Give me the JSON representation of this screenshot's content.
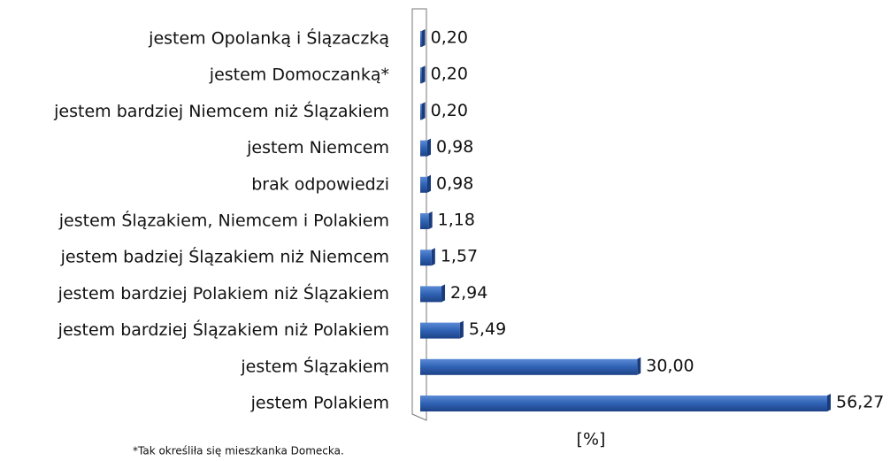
{
  "chart_data": {
    "type": "hbar",
    "categories": [
      "jestem Opolanką i Ślązaczką",
      "jestem Domoczanką*",
      "jestem bardziej Niemcem niż Ślązakiem",
      "jestem Niemcem",
      "brak odpowiedzi",
      "jestem Ślązakiem, Niemcem i Polakiem",
      "jestem badziej Ślązakiem niż Niemcem",
      "jestem bardziej Polakiem niż Ślązakiem",
      "jestem bardziej Ślązakiem niż Polakiem",
      "jestem Ślązakiem",
      "jestem Polakiem"
    ],
    "values": [
      0.2,
      0.2,
      0.2,
      0.98,
      0.98,
      1.18,
      1.57,
      2.94,
      5.49,
      30.0,
      56.27
    ],
    "value_labels": [
      "0,20",
      "0,20",
      "0,20",
      "0,98",
      "0,98",
      "1,18",
      "1,57",
      "2,94",
      "5,49",
      "30,00",
      "56,27"
    ],
    "color": "#2f62b3",
    "xlim": [
      0,
      56.27
    ],
    "xlabel": "[%]",
    "footnote": "*Tak określiła się mieszkanka Domecka."
  }
}
